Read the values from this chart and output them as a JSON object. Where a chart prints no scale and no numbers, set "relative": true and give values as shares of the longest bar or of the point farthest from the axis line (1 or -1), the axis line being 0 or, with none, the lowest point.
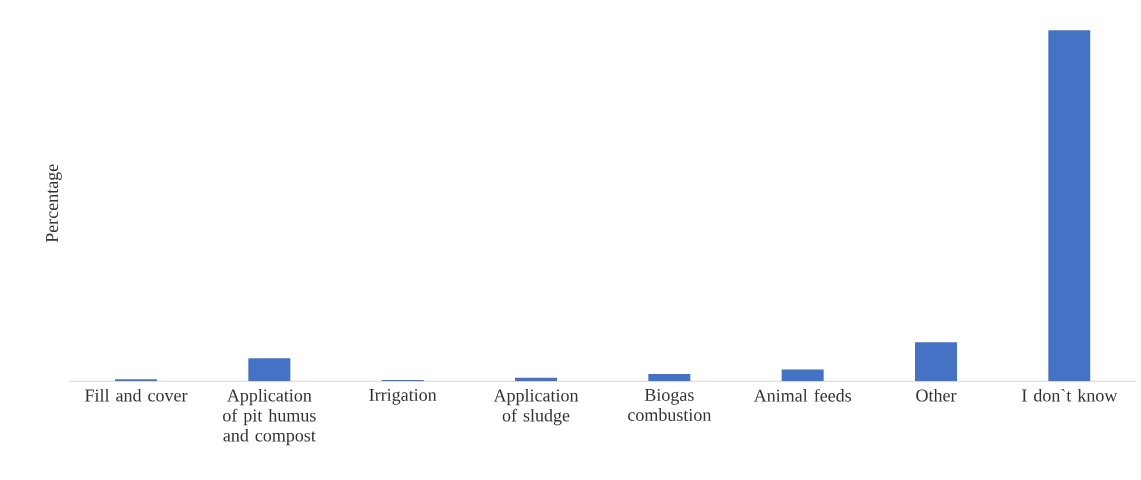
{
  "chart_data": {
    "type": "bar",
    "relative": true,
    "ylabel": "Percentage",
    "categories": [
      "Fill and cover",
      "Application of pit humus and compost",
      "Irrigation",
      "Application of sludge",
      "Biogas combustion",
      "Animal feeds",
      "Other",
      "I don`t know"
    ],
    "values": [
      0.006,
      0.066,
      0.004,
      0.01,
      0.021,
      0.034,
      0.111,
      1
    ],
    "color": "#4472c4"
  }
}
